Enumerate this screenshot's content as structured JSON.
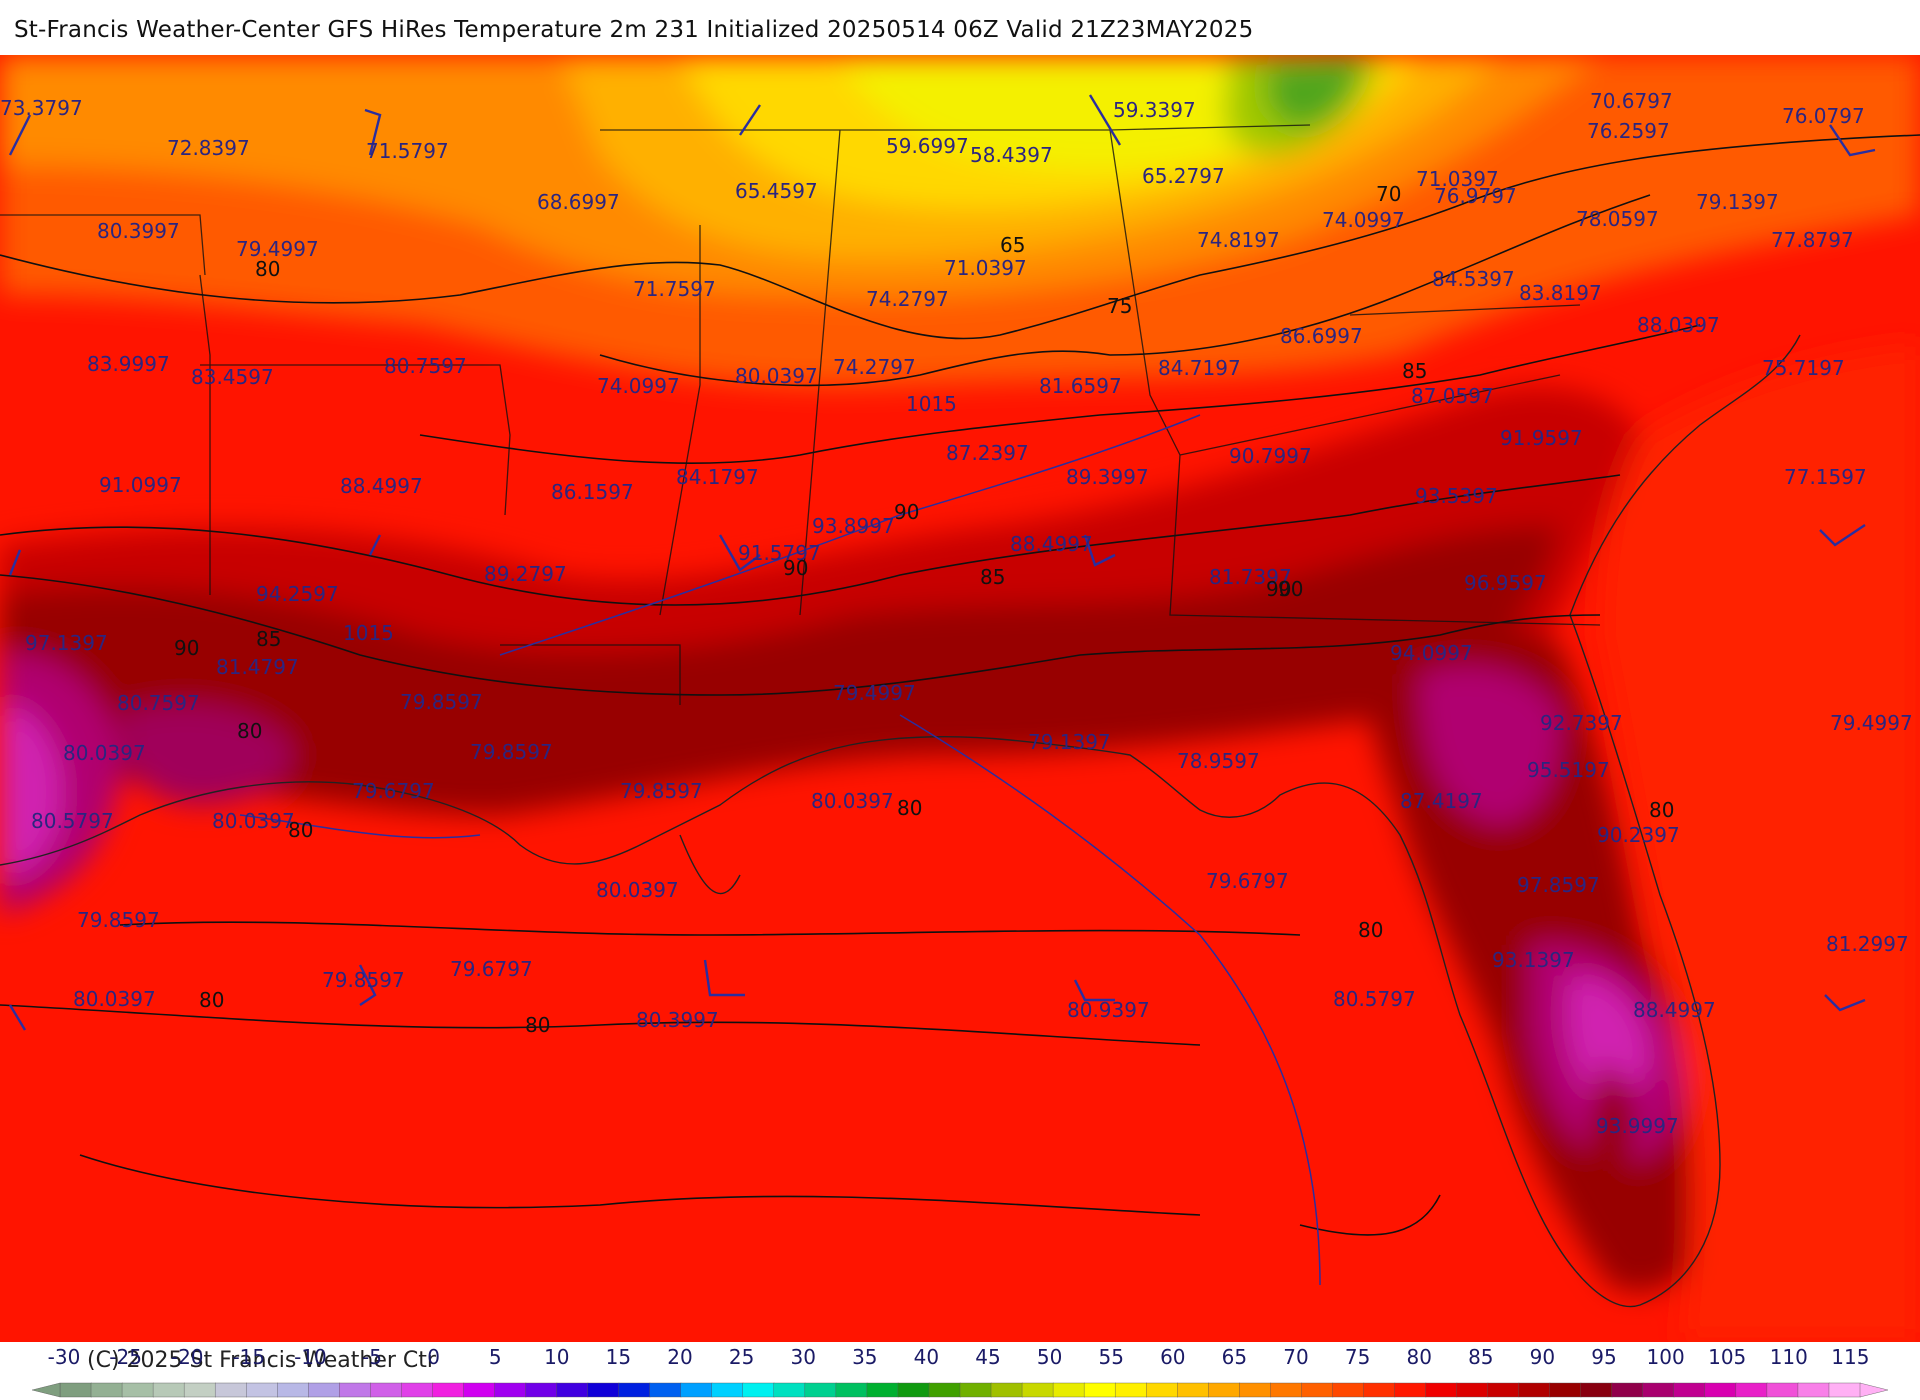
{
  "title": "St-Francis Weather-Center GFS HiRes Temperature 2m  231 Initialized 20250514 06Z Valid 21Z23MAY2025",
  "copyright": "(C) 2025 St Francis Weather Ctr",
  "map": {
    "region": "Southeastern United States and Gulf of Mexico",
    "variable": "Temperature 2m",
    "units": "F",
    "point_values": [
      "73.3797",
      "72.8397",
      "71.5797",
      "68.6997",
      "65.4597",
      "59.6997",
      "58.4397",
      "59.3397",
      "65.2797",
      "71.0397",
      "70.6797",
      "76.2597",
      "76.0797",
      "80.3997",
      "79.4997",
      "71.7597",
      "71.0397",
      "74.2797",
      "74.8197",
      "74.0997",
      "76.9797",
      "78.0597",
      "79.1397",
      "77.8797",
      "83.9997",
      "83.4597",
      "80.7597",
      "74.0997",
      "80.0397",
      "74.2797",
      "81.6597",
      "84.7197",
      "86.6997",
      "84.5397",
      "83.8197",
      "88.0397",
      "87.0597",
      "75.7197",
      "91.0997",
      "88.4997",
      "86.1597",
      "84.1797",
      "87.2397",
      "89.3997",
      "90.7997",
      "91.9597",
      "93.5397",
      "77.1597",
      "94.2597",
      "89.2797",
      "91.5797",
      "93.8997",
      "88.4997",
      "81.7397",
      "96.9597",
      "97.1397",
      "81.4797",
      "80.7597",
      "79.8597",
      "79.4997",
      "94.0997",
      "80.0397",
      "79.8597",
      "79.1397",
      "78.9597",
      "92.7397",
      "79.4997",
      "79.6797",
      "79.8597",
      "80.0397",
      "95.5197",
      "87.4197",
      "80.5797",
      "80.0397",
      "90.2397",
      "79.6797",
      "97.8597",
      "80.0397",
      "79.8597",
      "79.6797",
      "93.1397",
      "81.2997",
      "79.8597",
      "80.0397",
      "80.3997",
      "80.9397",
      "80.5797",
      "88.4997",
      "93.9997"
    ],
    "isotherm_labels": [
      "80",
      "65",
      "70",
      "75",
      "85",
      "90",
      "90",
      "90",
      "90",
      "85",
      "85",
      "90",
      "80",
      "80",
      "80",
      "80",
      "80",
      "80",
      "80"
    ],
    "isobar_labels": [
      "1015",
      "1015"
    ]
  },
  "colorbar": {
    "tick_labels": [
      "-30",
      "-25",
      "-20",
      "-15",
      "-10",
      "-5",
      "0",
      "5",
      "10",
      "15",
      "20",
      "25",
      "30",
      "35",
      "40",
      "45",
      "50",
      "55",
      "60",
      "65",
      "70",
      "75",
      "80",
      "85",
      "90",
      "95",
      "100",
      "105",
      "110",
      "115"
    ],
    "colors": [
      "#7f9e7f",
      "#93b093",
      "#a6bfa6",
      "#b7c9b7",
      "#c3cfc3",
      "#c7c7d9",
      "#c3c3e3",
      "#b8b8e6",
      "#b0a0e6",
      "#c078e8",
      "#d060e8",
      "#e040e8",
      "#f020e0",
      "#d000f0",
      "#a000f0",
      "#7000e8",
      "#4000e0",
      "#1000d8",
      "#0020e0",
      "#0060f0",
      "#00a0ff",
      "#00d0ff",
      "#00f0f0",
      "#00e0c0",
      "#00d090",
      "#00c060",
      "#00b030",
      "#109a10",
      "#40a000",
      "#70b000",
      "#a0c000",
      "#c8d800",
      "#e8ec00",
      "#ffff00",
      "#fff000",
      "#ffd800",
      "#ffc000",
      "#ffa800",
      "#ff9000",
      "#ff7800",
      "#ff6000",
      "#ff4800",
      "#ff3000",
      "#ff1800",
      "#f00000",
      "#dc0000",
      "#c80000",
      "#b00000",
      "#980000",
      "#880010",
      "#90004a",
      "#a8006e",
      "#c00090",
      "#d800b0",
      "#e820c8",
      "#f050d8",
      "#f880e8",
      "#ffb0f4"
    ]
  }
}
